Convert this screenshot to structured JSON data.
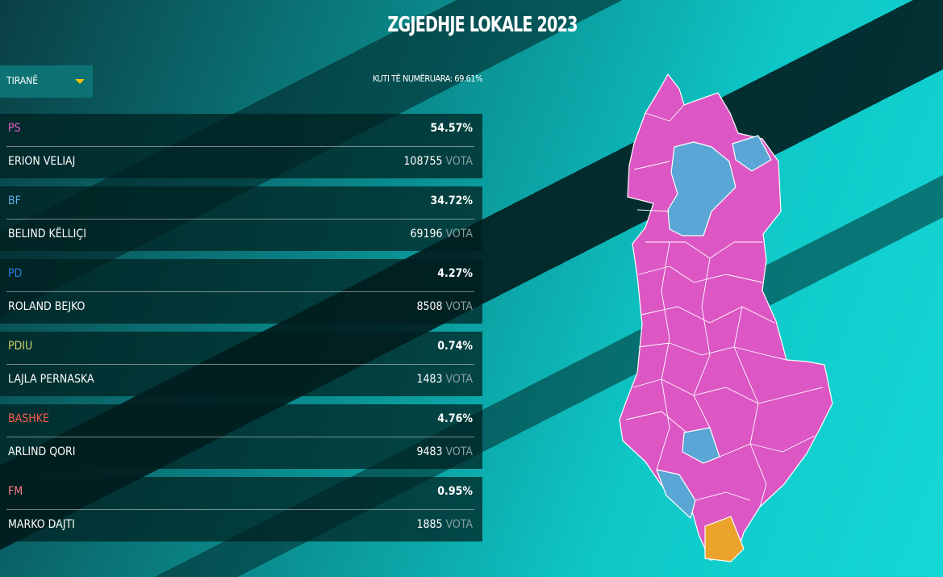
{
  "header": {
    "title": "ZGJEDHJE LOKALE 2023"
  },
  "selector": {
    "value": "TIRANË"
  },
  "counted": "KUTI TË NUMËRUARA: 69.61%",
  "unit": "VOTA",
  "results": [
    {
      "party": "PS",
      "color": "#e462c6",
      "percent": "54.57%",
      "candidate": "ERION VELIAJ",
      "votes": 108755
    },
    {
      "party": "BF",
      "color": "#62aee0",
      "percent": "34.72%",
      "candidate": "BELIND KËLLIÇI",
      "votes": 69196
    },
    {
      "party": "PD",
      "color": "#2f7fe6",
      "percent": "4.27%",
      "candidate": "ROLAND BEJKO",
      "votes": 8508
    },
    {
      "party": "PDIU",
      "color": "#cfd06a",
      "percent": "0.74%",
      "candidate": "LAJLA PERNASKA",
      "votes": 1483
    },
    {
      "party": "BASHKE",
      "color": "#ff5a4a",
      "percent": "4.76%",
      "candidate": "ARLIND QORI",
      "votes": 9483
    },
    {
      "party": "FM",
      "color": "#ff7f8c",
      "percent": "0.95%",
      "candidate": "MARKO DAJTI",
      "votes": 1885
    }
  ]
}
